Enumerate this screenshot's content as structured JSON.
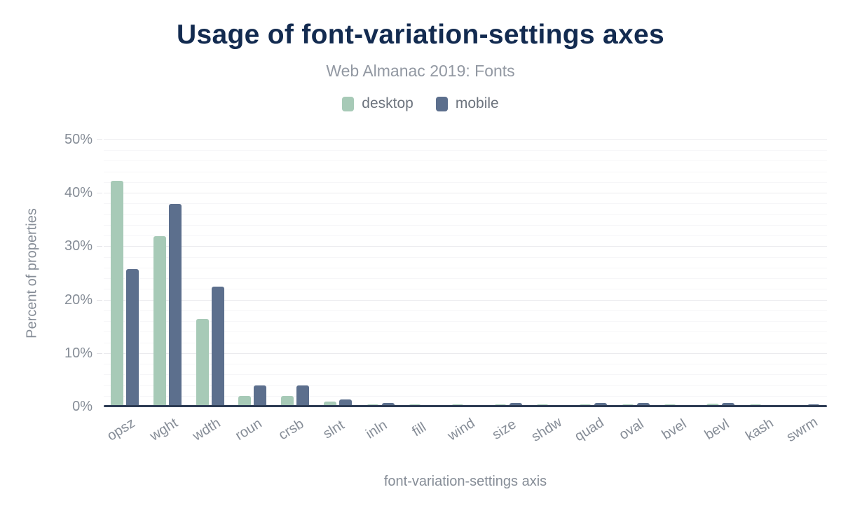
{
  "header": {
    "title": "Usage of font-variation-settings axes",
    "subtitle": "Web Almanac 2019: Fonts"
  },
  "colors": {
    "desktop": "#a7cab7",
    "mobile": "#5c6f8d",
    "title": "#132b50",
    "axis_line": "#2d3b54",
    "text_muted": "#868d97"
  },
  "chart_data": {
    "type": "bar",
    "title": "Usage of font-variation-settings axes",
    "subtitle": "Web Almanac 2019: Fonts",
    "xlabel": "font-variation-settings axis",
    "ylabel": "Percent of properties",
    "ylim": [
      0,
      50
    ],
    "ytick_step_major": 10,
    "ytick_step_minor": 2,
    "yticks": [
      {
        "value": 0,
        "label": "0%"
      },
      {
        "value": 10,
        "label": "10%"
      },
      {
        "value": 20,
        "label": "20%"
      },
      {
        "value": 30,
        "label": "30%"
      },
      {
        "value": 40,
        "label": "40%"
      },
      {
        "value": 50,
        "label": "50%"
      }
    ],
    "grid": true,
    "legend_position": "top",
    "categories": [
      "opsz",
      "wght",
      "wdth",
      "roun",
      "crsb",
      "slnt",
      "inln",
      "fill",
      "wind",
      "size",
      "shdw",
      "quad",
      "oval",
      "bvel",
      "bevl",
      "kash",
      "swrm"
    ],
    "series": [
      {
        "name": "desktop",
        "color": "#a7cab7",
        "values": [
          42.2,
          31.9,
          16.4,
          2.0,
          2.0,
          0.9,
          0.4,
          0.4,
          0.4,
          0.4,
          0.4,
          0.4,
          0.4,
          0.4,
          0.5,
          0.4,
          0.2
        ]
      },
      {
        "name": "mobile",
        "color": "#5c6f8d",
        "values": [
          25.7,
          37.9,
          22.5,
          4.0,
          4.0,
          1.3,
          0.6,
          0.1,
          0.1,
          0.6,
          0.1,
          0.6,
          0.6,
          0.1,
          0.6,
          0.1,
          0.4
        ]
      }
    ]
  }
}
